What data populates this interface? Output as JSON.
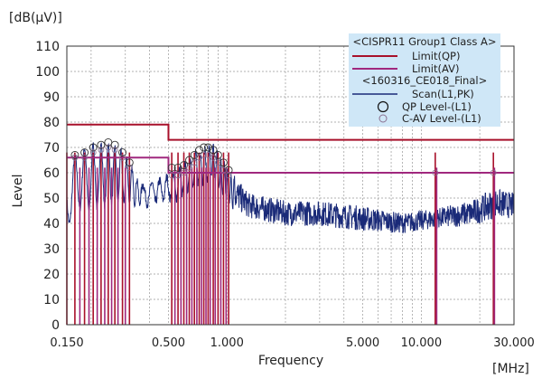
{
  "chart_data": {
    "type": "line",
    "title": "",
    "y_unit_label": "[dB(μV)]",
    "x_unit_label": "[MHz]",
    "xlabel": "Frequency",
    "ylabel": "Level",
    "xscale": "log",
    "xlim": [
      0.15,
      30
    ],
    "ylim": [
      0,
      110
    ],
    "y_ticks": [
      0,
      10,
      20,
      30,
      40,
      50,
      60,
      70,
      80,
      90,
      100,
      110
    ],
    "x_ticks": [
      {
        "value": 0.15,
        "label": "0.150"
      },
      {
        "value": 0.5,
        "label": "0.500"
      },
      {
        "value": 1.0,
        "label": "1.000"
      },
      {
        "value": 5.0,
        "label": "5.000"
      },
      {
        "value": 10.0,
        "label": "10.000"
      },
      {
        "value": 30.0,
        "label": "30.000"
      }
    ],
    "grid": true,
    "colors": {
      "limit_qp": "#a8102a",
      "limit_av": "#a0287e",
      "scan": "#1a2a78",
      "qp_marker": "#333333",
      "cav_marker": "#8a7090",
      "legend_bg": "#cfe7f7",
      "grid": "#999999"
    },
    "legend": {
      "position": "top-right",
      "group1_title": "<CISPR11 Group1 Class A>",
      "group2_title": "<160316_CE018_Final>",
      "entries": [
        {
          "key": "limit_qp",
          "label": "Limit(QP)",
          "style": "line"
        },
        {
          "key": "limit_av",
          "label": "Limit(AV)",
          "style": "line"
        },
        {
          "key": "scan",
          "label": "Scan(L1,PK)",
          "style": "line"
        },
        {
          "key": "qp_marker",
          "label": "QP Level-(L1)",
          "style": "circle"
        },
        {
          "key": "cav_marker",
          "label": "C-AV Level-(L1)",
          "style": "circle-small"
        }
      ]
    },
    "series": [
      {
        "name": "Limit(QP)",
        "key": "limit_qp",
        "steps": [
          {
            "x": [
              0.15,
              0.5
            ],
            "y": 79
          },
          {
            "x": [
              0.5,
              30
            ],
            "y": 73
          }
        ]
      },
      {
        "name": "Limit(AV)",
        "key": "limit_av",
        "steps": [
          {
            "x": [
              0.15,
              0.5
            ],
            "y": 66
          },
          {
            "x": [
              0.5,
              30
            ],
            "y": 60
          }
        ]
      },
      {
        "name": "Scan(L1,PK)",
        "key": "scan",
        "envelope": [
          {
            "x": 0.15,
            "y": 50,
            "amp": 12
          },
          {
            "x": 0.17,
            "y": 57,
            "amp": 11
          },
          {
            "x": 0.2,
            "y": 58,
            "amp": 13
          },
          {
            "x": 0.25,
            "y": 60,
            "amp": 12
          },
          {
            "x": 0.3,
            "y": 58,
            "amp": 9
          },
          {
            "x": 0.36,
            "y": 51,
            "amp": 4
          },
          {
            "x": 0.45,
            "y": 53,
            "amp": 4
          },
          {
            "x": 0.55,
            "y": 55,
            "amp": 5
          },
          {
            "x": 0.7,
            "y": 62,
            "amp": 6
          },
          {
            "x": 0.85,
            "y": 64,
            "amp": 6
          },
          {
            "x": 1.0,
            "y": 55,
            "amp": 7
          },
          {
            "x": 1.3,
            "y": 47,
            "amp": 5
          },
          {
            "x": 2.0,
            "y": 44,
            "amp": 5
          },
          {
            "x": 3.0,
            "y": 44,
            "amp": 5
          },
          {
            "x": 5.0,
            "y": 42,
            "amp": 5
          },
          {
            "x": 8.0,
            "y": 40,
            "amp": 4
          },
          {
            "x": 12.0,
            "y": 42,
            "amp": 4
          },
          {
            "x": 18.0,
            "y": 44,
            "amp": 5
          },
          {
            "x": 24.0,
            "y": 48,
            "amp": 6
          },
          {
            "x": 30.0,
            "y": 47,
            "amp": 5
          }
        ]
      }
    ],
    "qp_points": [
      {
        "x": 0.165,
        "y": 67
      },
      {
        "x": 0.185,
        "y": 68
      },
      {
        "x": 0.205,
        "y": 70
      },
      {
        "x": 0.225,
        "y": 71
      },
      {
        "x": 0.245,
        "y": 72
      },
      {
        "x": 0.265,
        "y": 71
      },
      {
        "x": 0.29,
        "y": 68
      },
      {
        "x": 0.315,
        "y": 64
      },
      {
        "x": 0.52,
        "y": 62
      },
      {
        "x": 0.56,
        "y": 62
      },
      {
        "x": 0.6,
        "y": 63
      },
      {
        "x": 0.64,
        "y": 65
      },
      {
        "x": 0.68,
        "y": 67
      },
      {
        "x": 0.72,
        "y": 69
      },
      {
        "x": 0.76,
        "y": 70
      },
      {
        "x": 0.8,
        "y": 70
      },
      {
        "x": 0.85,
        "y": 69
      },
      {
        "x": 0.9,
        "y": 67
      },
      {
        "x": 0.96,
        "y": 64
      },
      {
        "x": 1.02,
        "y": 61
      }
    ],
    "cav_points": [
      {
        "x": 0.165,
        "y": 66
      },
      {
        "x": 0.185,
        "y": 66
      },
      {
        "x": 0.205,
        "y": 68
      },
      {
        "x": 0.225,
        "y": 69
      },
      {
        "x": 0.245,
        "y": 70
      },
      {
        "x": 0.265,
        "y": 69
      },
      {
        "x": 0.29,
        "y": 66
      },
      {
        "x": 0.315,
        "y": 62
      },
      {
        "x": 0.52,
        "y": 59
      },
      {
        "x": 0.56,
        "y": 59
      },
      {
        "x": 0.6,
        "y": 60
      },
      {
        "x": 0.64,
        "y": 62
      },
      {
        "x": 0.68,
        "y": 64
      },
      {
        "x": 0.72,
        "y": 66
      },
      {
        "x": 0.76,
        "y": 67
      },
      {
        "x": 0.8,
        "y": 67
      },
      {
        "x": 0.85,
        "y": 66
      },
      {
        "x": 0.9,
        "y": 64
      },
      {
        "x": 0.96,
        "y": 61
      },
      {
        "x": 1.02,
        "y": 59
      },
      {
        "x": 11.8,
        "y": 60
      },
      {
        "x": 23.5,
        "y": 60
      }
    ],
    "spike_lines": [
      {
        "key": "limit_qp",
        "x": [
          0.15,
          0.165,
          0.185,
          0.205,
          0.225,
          0.245,
          0.265,
          0.29,
          0.315,
          0.52,
          0.56,
          0.6,
          0.64,
          0.68,
          0.72,
          0.76,
          0.8,
          0.85,
          0.9,
          0.96,
          1.02,
          11.8,
          23.5
        ],
        "top": 68
      },
      {
        "key": "limit_av",
        "x": [
          0.175,
          0.195,
          0.215,
          0.235,
          0.255,
          0.275,
          0.3,
          0.54,
          0.58,
          0.62,
          0.66,
          0.7,
          0.74,
          0.78,
          0.82,
          0.87,
          0.93,
          0.99,
          12.0,
          23.8
        ],
        "top": 62
      }
    ]
  }
}
